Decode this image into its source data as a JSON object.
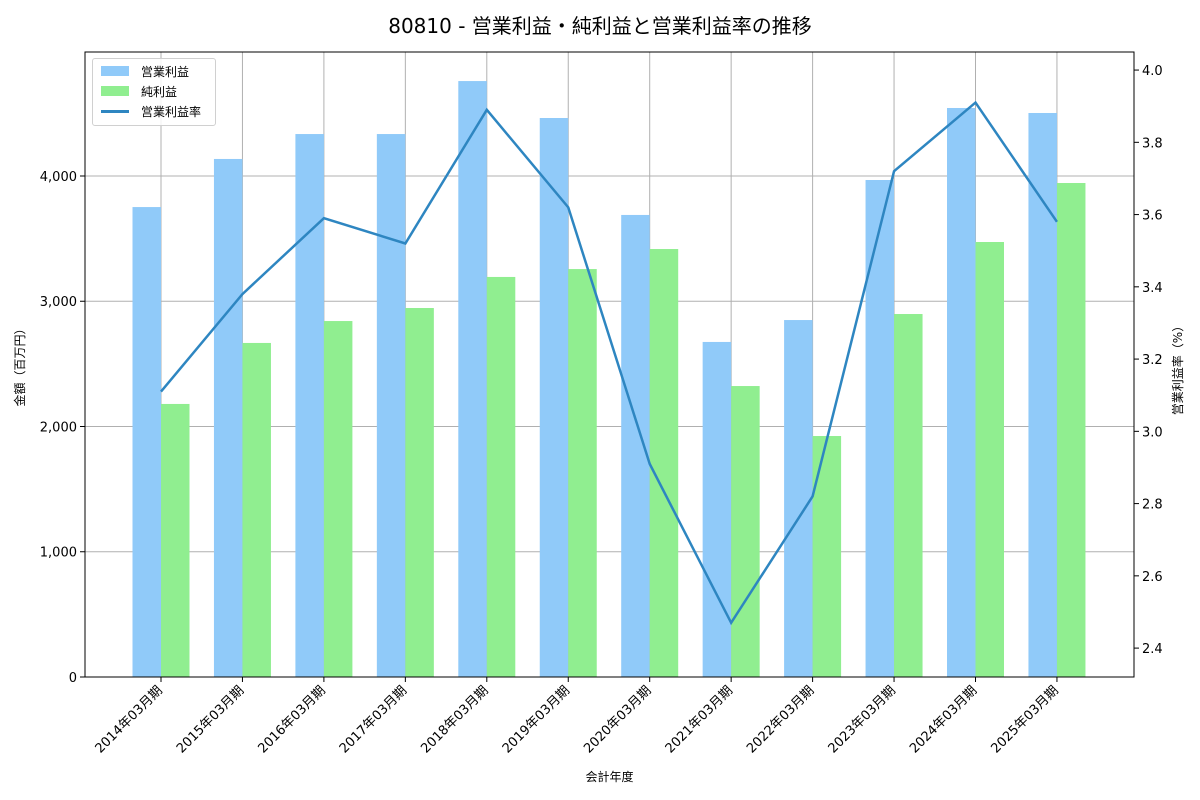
{
  "title": "80810 - 営業利益・純利益と営業利益率の推移",
  "legend": {
    "items": [
      {
        "label": "営業利益",
        "kind": "bar",
        "color": "#90caf9"
      },
      {
        "label": "純利益",
        "kind": "bar",
        "color": "#90ee90"
      },
      {
        "label": "営業利益率",
        "kind": "line",
        "color": "#2e86c1"
      }
    ]
  },
  "axes": {
    "xlabel": "会計年度",
    "ylabel_left": "金額（百万円）",
    "ylabel_right": "営業利益率（%）",
    "left_ticks": [
      "0",
      "1,000",
      "2,000",
      "3,000",
      "4,000"
    ],
    "right_ticks": [
      "2.4",
      "2.6",
      "2.8",
      "3.0",
      "3.2",
      "3.4",
      "3.6",
      "3.8",
      "4.0"
    ]
  },
  "chart_data": {
    "type": "bar",
    "title": "80810 - 営業利益・純利益と営業利益率の推移",
    "xlabel": "会計年度",
    "ylabel": "金額（百万円）",
    "ylabel_right": "営業利益率（%）",
    "categories": [
      "2014年03月期",
      "2015年03月期",
      "2016年03月期",
      "2017年03月期",
      "2018年03月期",
      "2019年03月期",
      "2020年03月期",
      "2021年03月期",
      "2022年03月期",
      "2023年03月期",
      "2024年03月期",
      "2025年03月期"
    ],
    "series": [
      {
        "name": "営業利益",
        "type": "bar",
        "axis": "left",
        "color": "#90caf9",
        "values": [
          3752,
          4136,
          4335,
          4335,
          4758,
          4463,
          3689,
          2675,
          2850,
          3968,
          4543,
          4503
        ]
      },
      {
        "name": "純利益",
        "type": "bar",
        "axis": "left",
        "color": "#90ee90",
        "values": [
          2180,
          2667,
          2842,
          2946,
          3194,
          3257,
          3417,
          2323,
          1924,
          2898,
          3473,
          3944
        ]
      },
      {
        "name": "営業利益率",
        "type": "line",
        "axis": "right",
        "color": "#2e86c1",
        "values": [
          3.11,
          3.38,
          3.59,
          3.52,
          3.89,
          3.62,
          2.91,
          2.47,
          2.82,
          3.72,
          3.91,
          3.58
        ]
      }
    ],
    "ylim": [
      0,
      4990
    ],
    "ylim_right": [
      2.32,
      4.05
    ],
    "yticks": [
      0,
      1000,
      2000,
      3000,
      4000
    ],
    "yticks_right": [
      2.4,
      2.6,
      2.8,
      3.0,
      3.2,
      3.4,
      3.6,
      3.8,
      4.0
    ],
    "grid": true,
    "legend_position": "upper left"
  }
}
